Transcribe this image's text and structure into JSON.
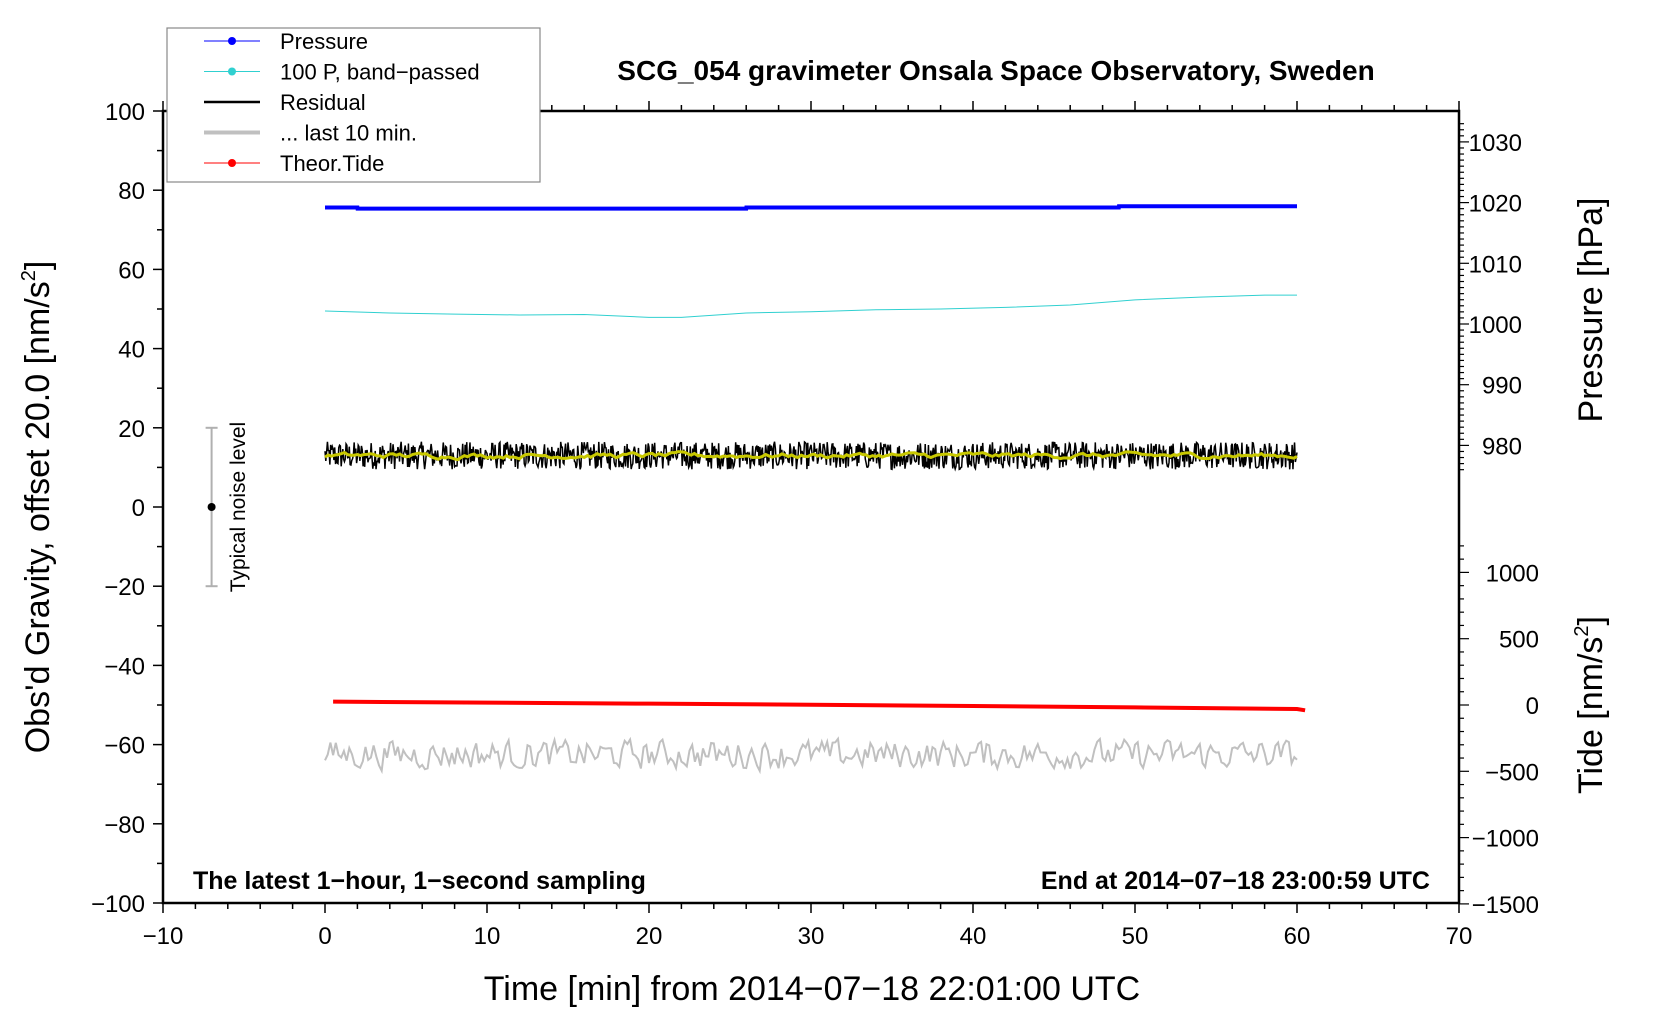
{
  "chart_data": {
    "type": "line",
    "title": "SCG_054 gravimeter Onsala Space Observatory, Sweden",
    "xlabel": "Time [min] from 2014−07−18 22:01:00 UTC",
    "ylabel": "Obs'd Gravity, offset 20.0 [nm/s",
    "ylabel_sup": "2",
    "ylabel_end": "]",
    "y2label_pressure": "Pressure [hPa]",
    "y2label_tide": "Tide [nm/s",
    "y2label_tide_sup": "2",
    "y2label_tide_end": "]",
    "xlim": [
      -10,
      70
    ],
    "ylim": [
      -100,
      100
    ],
    "pressure_lim": [
      980,
      1030
    ],
    "tide_lim": [
      -1500,
      1000
    ],
    "xticks": [
      -10,
      0,
      10,
      20,
      30,
      40,
      50,
      60,
      70
    ],
    "yticks": [
      -100,
      -80,
      -60,
      -40,
      -20,
      0,
      20,
      40,
      60,
      80,
      100
    ],
    "pressure_ticks": [
      980,
      990,
      1000,
      1010,
      1020,
      1030
    ],
    "tide_ticks": [
      -1500,
      -1000,
      -500,
      0,
      500,
      1000
    ],
    "grid": false,
    "legend_placement": "top-left",
    "legend": [
      {
        "label": "Pressure",
        "color": "#0000ff",
        "marker": true
      },
      {
        "label": "100 P, band−passed",
        "color": "#30d0d0",
        "marker": true
      },
      {
        "label": "Residual",
        "color": "#000000",
        "marker": false
      },
      {
        "label": "... last 10 min.",
        "color": "#c0c0c0",
        "marker": false
      },
      {
        "label": "Theor.Tide",
        "color": "#ff0000",
        "marker": true
      }
    ],
    "annotations": {
      "left": "The latest 1−hour, 1−second sampling",
      "right": "End at 2014−07−18 23:00:59 UTC",
      "noise": "Typical noise level"
    },
    "noise_bar": {
      "x": -7,
      "center": 0,
      "low": -20,
      "high": 20
    },
    "series": [
      {
        "name": "Pressure",
        "axis": "pressure",
        "color": "#0000ff",
        "x": [
          0,
          2,
          2.01,
          26,
          26.01,
          49,
          49.01,
          60
        ],
        "y": [
          1019.2,
          1019.2,
          1019.0,
          1019.0,
          1019.2,
          1019.2,
          1019.4,
          1019.4
        ]
      },
      {
        "name": "100 P, band-passed",
        "axis": "gravity",
        "color": "#30d0d0",
        "x": [
          0,
          4,
          8,
          12,
          16,
          20,
          22,
          26,
          30,
          34,
          38,
          42,
          46,
          50,
          54,
          58,
          60
        ],
        "y": [
          49.5,
          49.0,
          48.7,
          48.5,
          48.6,
          47.9,
          47.9,
          49.0,
          49.3,
          49.8,
          50.0,
          50.4,
          51.0,
          52.3,
          53.0,
          53.5,
          53.5
        ]
      },
      {
        "name": "Residual",
        "axis": "gravity",
        "color": "#000000",
        "mean": 13,
        "noise_amplitude": 3.5,
        "x_range": [
          0,
          60
        ]
      },
      {
        "name": "Residual smoothed",
        "axis": "gravity",
        "color": "#c8c800",
        "mean": 13,
        "noise_amplitude": 0.8,
        "x_range": [
          0,
          60
        ]
      },
      {
        "name": "... last 10 min.",
        "axis": "gravity",
        "color": "#c0c0c0",
        "mean": -62.5,
        "noise_amplitude": 3,
        "x_range": [
          0,
          60
        ]
      },
      {
        "name": "Theor.Tide",
        "axis": "tide",
        "color": "#ff0000",
        "x": [
          0.5,
          10,
          20,
          30,
          40,
          50,
          60,
          60.5
        ],
        "y": [
          25,
          18,
          10,
          2,
          -8,
          -18,
          -30,
          -40
        ]
      }
    ]
  }
}
